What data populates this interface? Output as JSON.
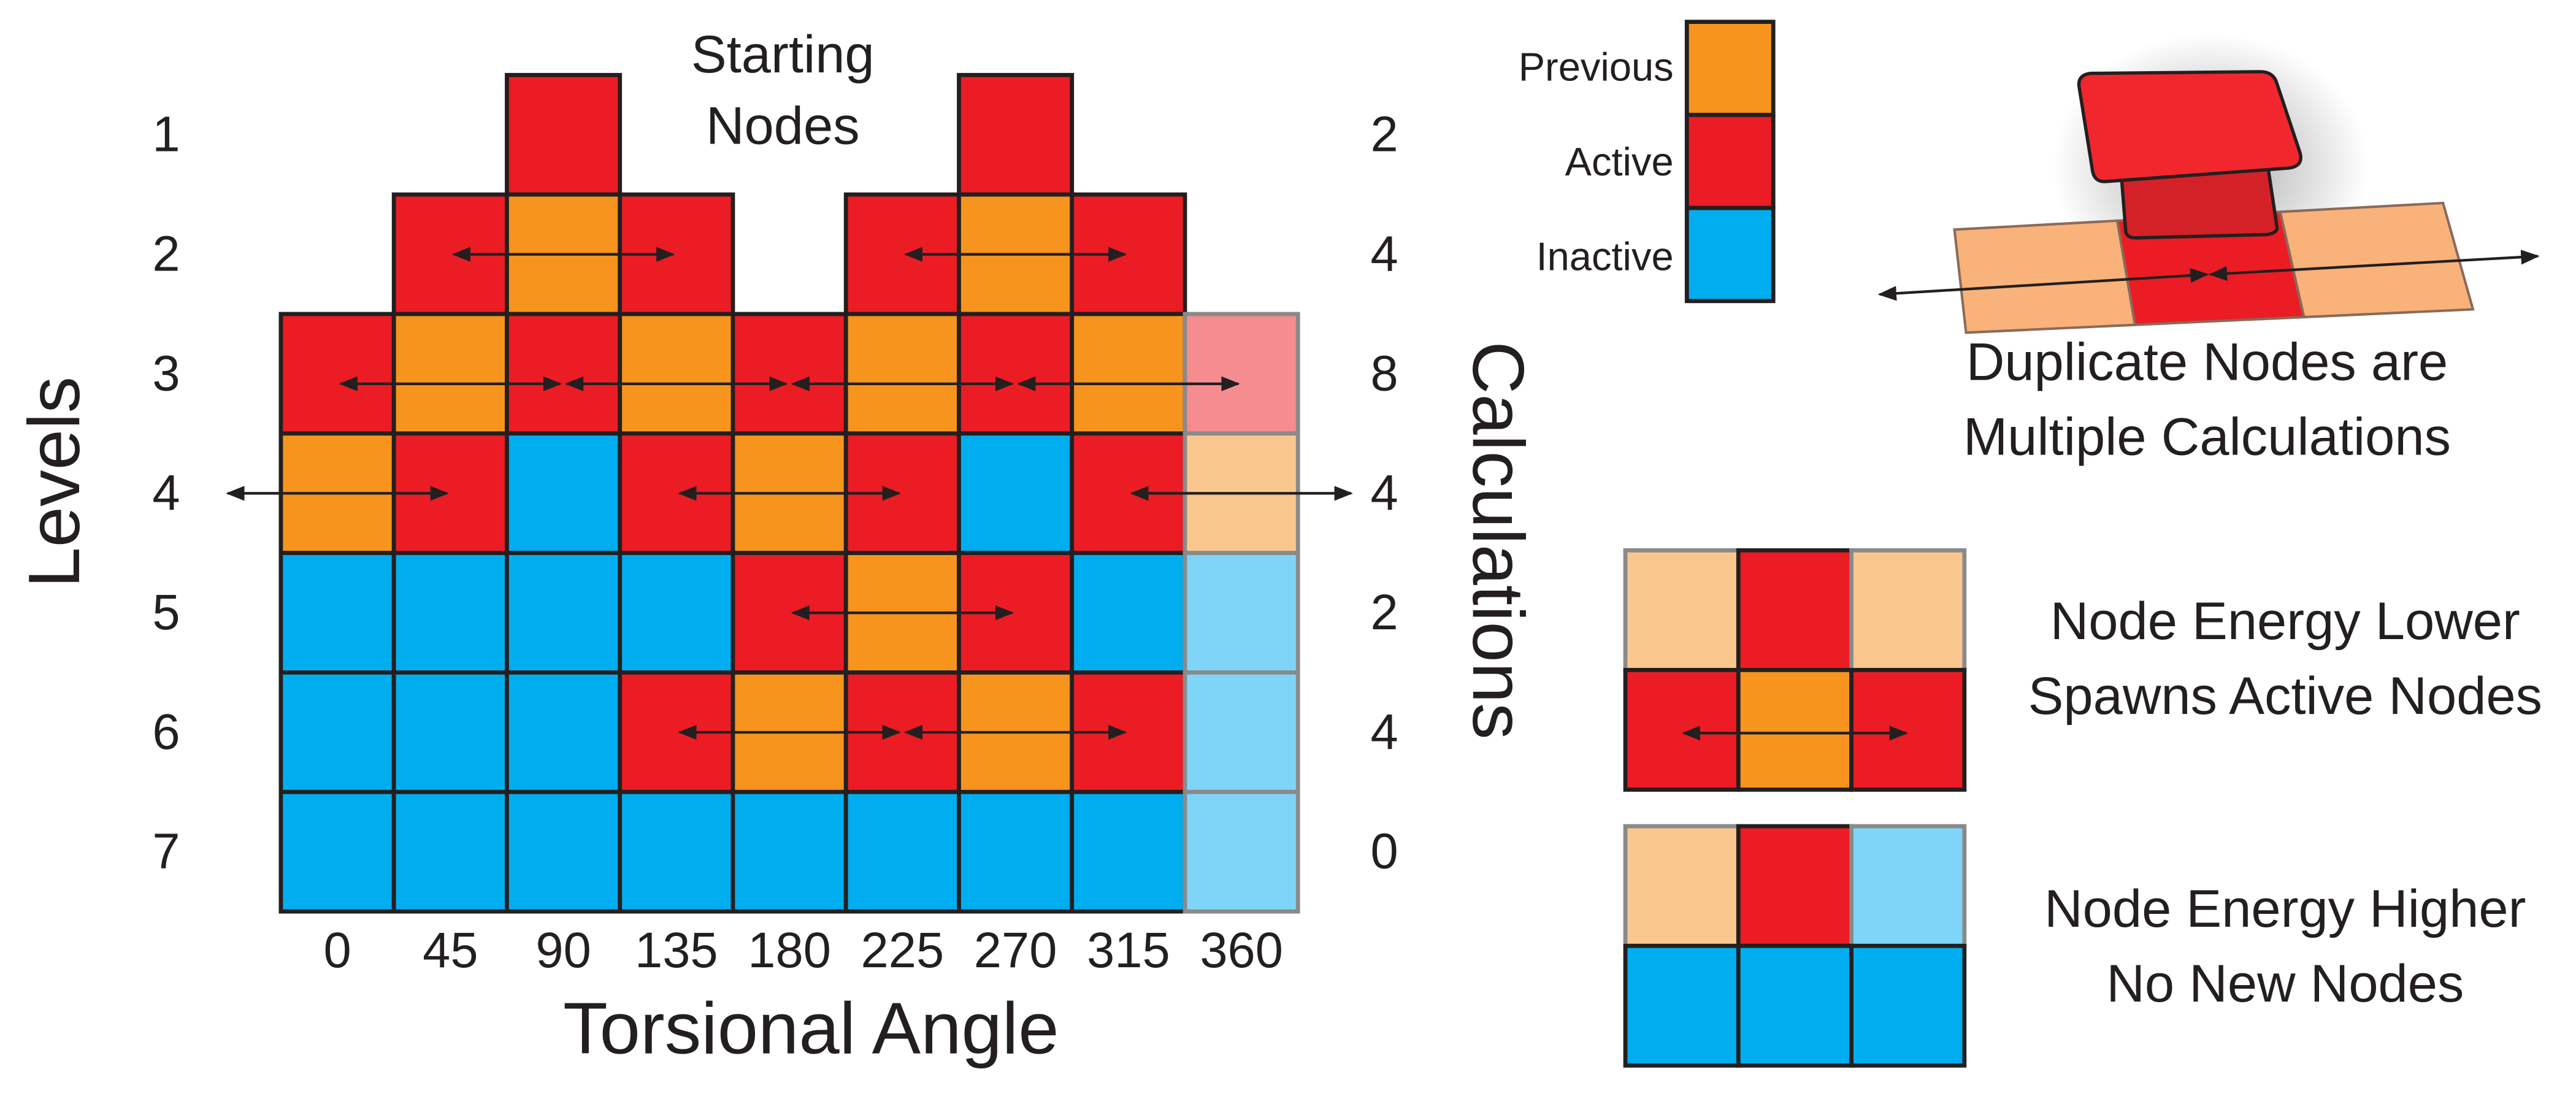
{
  "levels": {
    "title": "Levels",
    "labels": [
      1,
      2,
      3,
      4,
      5,
      6,
      7
    ]
  },
  "calculations": {
    "title": "Calculations",
    "labels": [
      2,
      4,
      8,
      4,
      2,
      4,
      0
    ]
  },
  "torsional_angle": {
    "title": "Torsional Angle",
    "labels": [
      0,
      45,
      90,
      135,
      180,
      225,
      270,
      315,
      360
    ]
  },
  "starting_nodes": [
    "Starting",
    "Nodes"
  ],
  "legend": [
    "Previous",
    "Active",
    "Inactive"
  ],
  "notes": {
    "duplicate": [
      "Duplicate Nodes are",
      "Multiple Calculations"
    ],
    "lower": [
      "Node Energy Lower",
      "Spawns Active Nodes"
    ],
    "higher": [
      "Node Energy Higher",
      "No New Nodes"
    ]
  }
}
